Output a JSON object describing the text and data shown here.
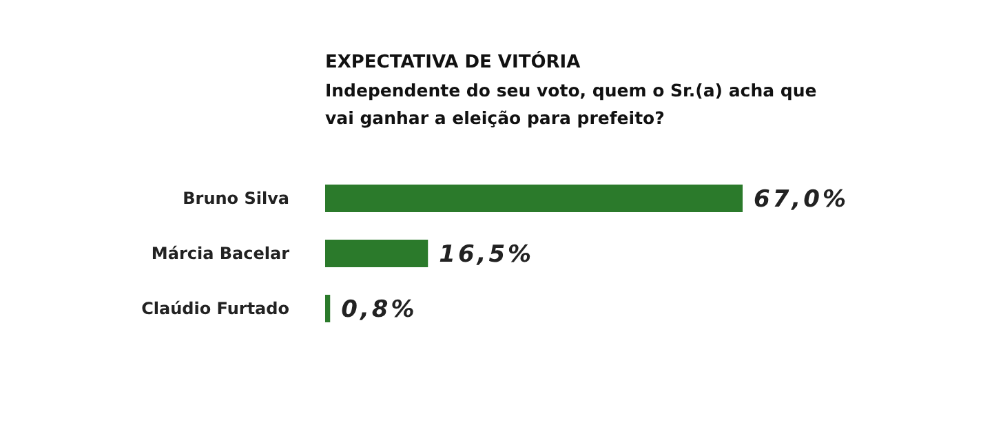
{
  "chart_data": {
    "type": "bar",
    "orientation": "horizontal",
    "title": "EXPECTATIVA DE VITÓRIA",
    "subtitle": "Independente do seu voto, quem o Sr.(a) acha que vai ganhar a eleição para prefeito?",
    "categories": [
      "Bruno Silva",
      "Márcia Bacelar",
      "Claúdio Furtado"
    ],
    "values": [
      67.0,
      16.5,
      0.8
    ],
    "value_labels": [
      "67,0%",
      "16,5%",
      "0,8%"
    ],
    "color": "#2b7a2b",
    "xlim": [
      0,
      67
    ]
  }
}
